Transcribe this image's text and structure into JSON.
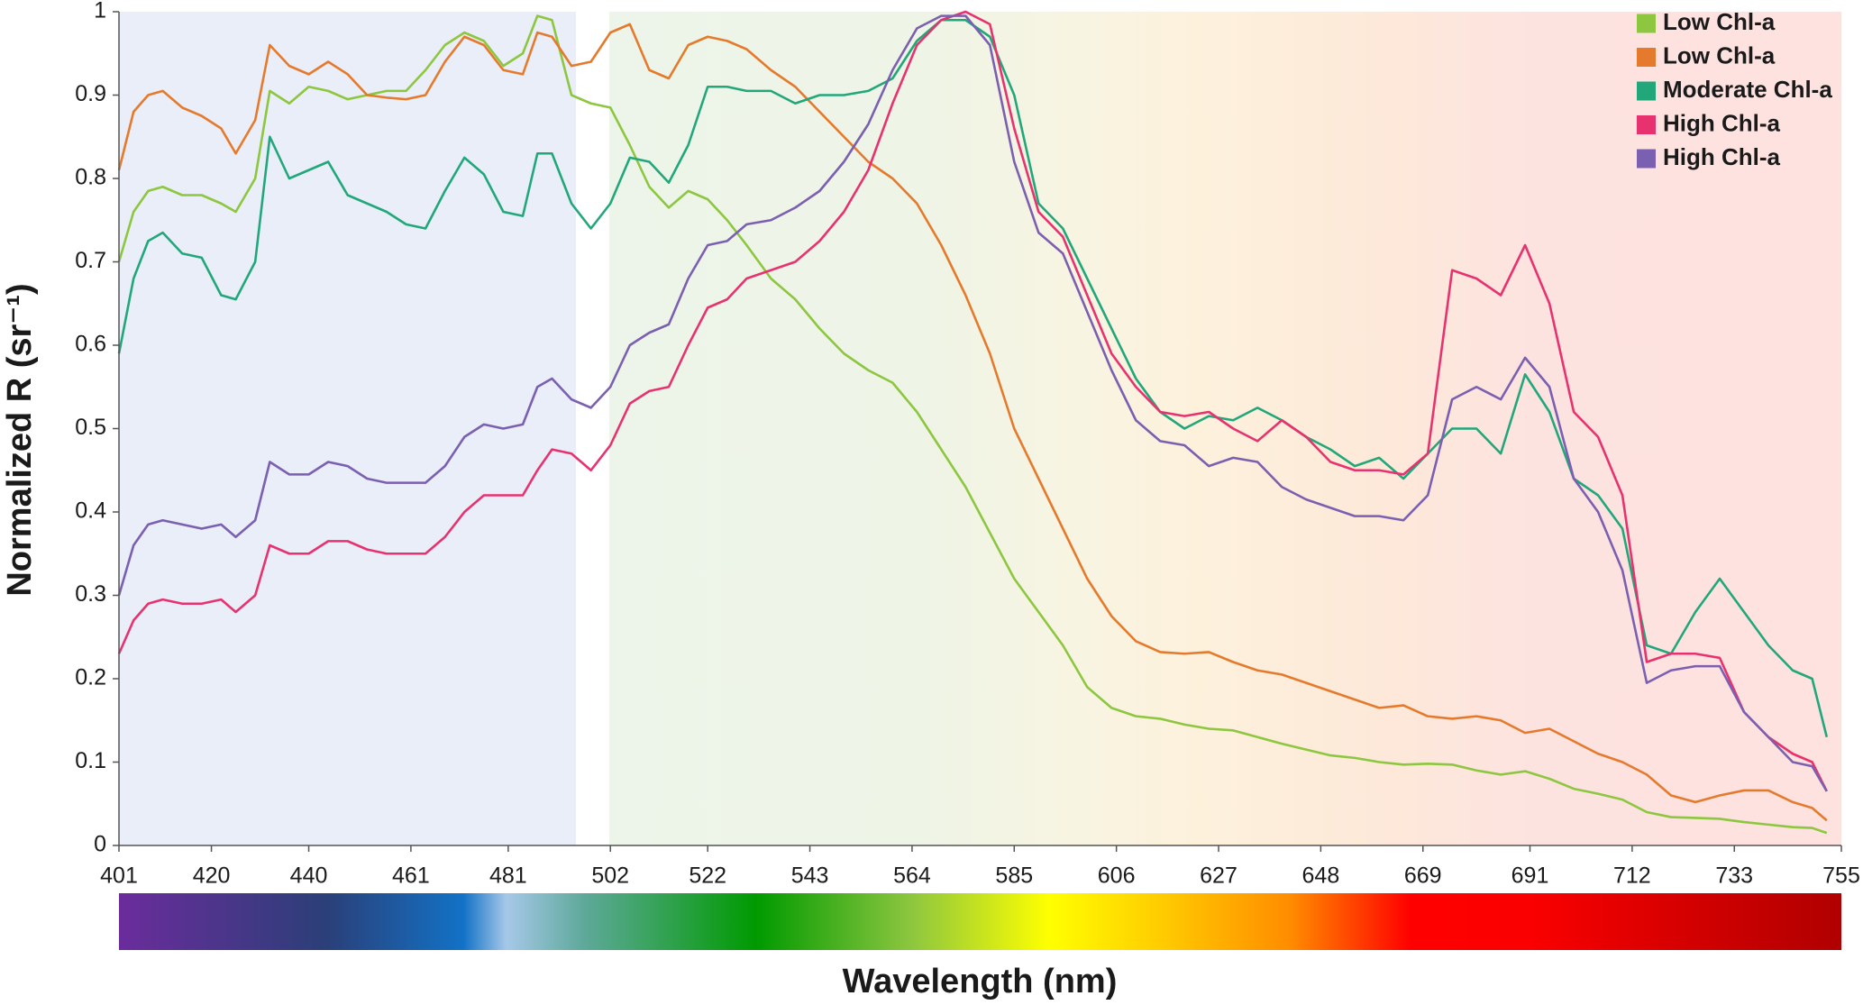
{
  "chart_data": {
    "type": "line",
    "x_label": "Wavelength (nm)",
    "y_label": "Normalized R (sr⁻¹)",
    "legend": "top-right",
    "xlim": [
      401,
      755
    ],
    "ylim": [
      0,
      1
    ],
    "xticks": [
      401,
      420,
      440,
      461,
      481,
      502,
      522,
      543,
      564,
      585,
      606,
      627,
      648,
      669,
      691,
      712,
      733,
      755
    ],
    "yticks": [
      0,
      0.1,
      0.2,
      0.3,
      0.4,
      0.5,
      0.6,
      0.7,
      0.8,
      0.9,
      1
    ],
    "x": [
      401,
      404,
      407,
      410,
      414,
      418,
      422,
      425,
      429,
      432,
      436,
      440,
      444,
      448,
      452,
      456,
      460,
      464,
      468,
      472,
      476,
      480,
      484,
      487,
      490,
      494,
      498,
      502,
      506,
      510,
      514,
      518,
      522,
      526,
      530,
      535,
      540,
      545,
      550,
      555,
      560,
      565,
      570,
      575,
      580,
      585,
      590,
      595,
      600,
      605,
      610,
      615,
      620,
      625,
      630,
      635,
      640,
      645,
      650,
      655,
      660,
      665,
      670,
      675,
      680,
      685,
      690,
      695,
      700,
      705,
      710,
      715,
      720,
      725,
      730,
      735,
      740,
      745,
      749,
      752
    ],
    "series": [
      {
        "name": "Low Chl-a",
        "color": "#8dc63f",
        "values": [
          0.7,
          0.76,
          0.785,
          0.79,
          0.78,
          0.78,
          0.77,
          0.76,
          0.8,
          0.905,
          0.89,
          0.91,
          0.905,
          0.895,
          0.9,
          0.905,
          0.905,
          0.93,
          0.96,
          0.975,
          0.965,
          0.935,
          0.95,
          0.995,
          0.99,
          0.9,
          0.89,
          0.885,
          0.84,
          0.79,
          0.765,
          0.785,
          0.775,
          0.75,
          0.72,
          0.68,
          0.655,
          0.62,
          0.59,
          0.57,
          0.555,
          0.52,
          0.475,
          0.43,
          0.375,
          0.32,
          0.28,
          0.24,
          0.19,
          0.165,
          0.155,
          0.152,
          0.145,
          0.14,
          0.138,
          0.13,
          0.122,
          0.115,
          0.108,
          0.105,
          0.1,
          0.097,
          0.098,
          0.097,
          0.09,
          0.085,
          0.089,
          0.08,
          0.068,
          0.062,
          0.055,
          0.04,
          0.034,
          0.033,
          0.032,
          0.028,
          0.025,
          0.022,
          0.021,
          0.015
        ]
      },
      {
        "name": "Low Chl-a",
        "color": "#e57a2c",
        "values": [
          0.81,
          0.88,
          0.9,
          0.905,
          0.885,
          0.875,
          0.86,
          0.83,
          0.87,
          0.96,
          0.935,
          0.925,
          0.94,
          0.925,
          0.9,
          0.897,
          0.895,
          0.9,
          0.94,
          0.97,
          0.96,
          0.93,
          0.925,
          0.975,
          0.97,
          0.935,
          0.94,
          0.975,
          0.985,
          0.93,
          0.92,
          0.96,
          0.97,
          0.965,
          0.955,
          0.93,
          0.91,
          0.88,
          0.85,
          0.82,
          0.8,
          0.77,
          0.72,
          0.66,
          0.59,
          0.5,
          0.44,
          0.38,
          0.32,
          0.275,
          0.245,
          0.232,
          0.23,
          0.232,
          0.22,
          0.21,
          0.205,
          0.195,
          0.185,
          0.175,
          0.165,
          0.168,
          0.155,
          0.152,
          0.155,
          0.15,
          0.135,
          0.14,
          0.125,
          0.11,
          0.1,
          0.085,
          0.06,
          0.052,
          0.06,
          0.066,
          0.066,
          0.052,
          0.045,
          0.03
        ]
      },
      {
        "name": "Moderate Chl-a",
        "color": "#22a77a",
        "values": [
          0.59,
          0.68,
          0.725,
          0.735,
          0.71,
          0.705,
          0.66,
          0.655,
          0.7,
          0.85,
          0.8,
          0.81,
          0.82,
          0.78,
          0.77,
          0.76,
          0.745,
          0.74,
          0.785,
          0.825,
          0.805,
          0.76,
          0.755,
          0.83,
          0.83,
          0.77,
          0.74,
          0.77,
          0.825,
          0.82,
          0.795,
          0.84,
          0.91,
          0.91,
          0.905,
          0.905,
          0.89,
          0.9,
          0.9,
          0.905,
          0.92,
          0.965,
          0.99,
          0.99,
          0.97,
          0.9,
          0.77,
          0.74,
          0.68,
          0.62,
          0.56,
          0.52,
          0.5,
          0.515,
          0.51,
          0.525,
          0.51,
          0.49,
          0.475,
          0.455,
          0.465,
          0.44,
          0.47,
          0.5,
          0.5,
          0.47,
          0.565,
          0.52,
          0.44,
          0.42,
          0.38,
          0.24,
          0.23,
          0.28,
          0.32,
          0.28,
          0.24,
          0.21,
          0.2,
          0.13
        ]
      },
      {
        "name": "High Chl-a",
        "color": "#e8326f",
        "values": [
          0.23,
          0.27,
          0.29,
          0.295,
          0.29,
          0.29,
          0.295,
          0.28,
          0.3,
          0.36,
          0.35,
          0.35,
          0.365,
          0.365,
          0.355,
          0.35,
          0.35,
          0.35,
          0.37,
          0.4,
          0.42,
          0.42,
          0.42,
          0.45,
          0.475,
          0.47,
          0.45,
          0.48,
          0.53,
          0.545,
          0.55,
          0.6,
          0.645,
          0.655,
          0.68,
          0.69,
          0.7,
          0.725,
          0.76,
          0.81,
          0.89,
          0.96,
          0.99,
          1.0,
          0.985,
          0.86,
          0.76,
          0.73,
          0.66,
          0.59,
          0.55,
          0.52,
          0.515,
          0.52,
          0.5,
          0.485,
          0.51,
          0.49,
          0.46,
          0.45,
          0.45,
          0.445,
          0.47,
          0.69,
          0.68,
          0.66,
          0.72,
          0.65,
          0.52,
          0.49,
          0.42,
          0.22,
          0.23,
          0.23,
          0.225,
          0.16,
          0.13,
          0.11,
          0.1,
          0.065
        ]
      },
      {
        "name": "High Chl-a",
        "color": "#7b5fb0",
        "values": [
          0.3,
          0.36,
          0.385,
          0.39,
          0.385,
          0.38,
          0.385,
          0.37,
          0.39,
          0.46,
          0.445,
          0.445,
          0.46,
          0.455,
          0.44,
          0.435,
          0.435,
          0.435,
          0.455,
          0.49,
          0.505,
          0.5,
          0.505,
          0.55,
          0.56,
          0.535,
          0.525,
          0.55,
          0.6,
          0.615,
          0.625,
          0.68,
          0.72,
          0.725,
          0.745,
          0.75,
          0.765,
          0.785,
          0.82,
          0.865,
          0.93,
          0.98,
          0.995,
          0.995,
          0.96,
          0.82,
          0.735,
          0.71,
          0.64,
          0.57,
          0.51,
          0.485,
          0.48,
          0.455,
          0.465,
          0.46,
          0.43,
          0.415,
          0.405,
          0.395,
          0.395,
          0.39,
          0.42,
          0.535,
          0.55,
          0.535,
          0.585,
          0.55,
          0.44,
          0.4,
          0.33,
          0.195,
          0.21,
          0.215,
          0.215,
          0.16,
          0.13,
          0.1,
          0.095,
          0.065
        ]
      }
    ]
  }
}
